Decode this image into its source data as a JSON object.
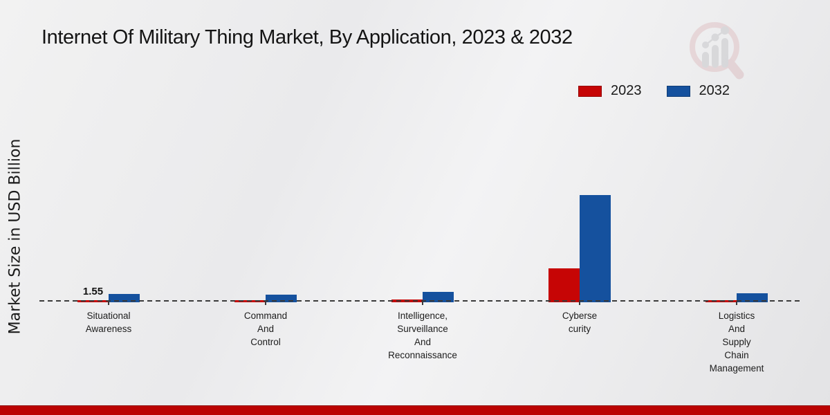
{
  "page": {
    "title": "Internet Of Military Thing Market, By Application, 2023 & 2032"
  },
  "watermark_icon": "bar-chart-magnifier-logo",
  "colors": {
    "series_2023": "#c60505",
    "series_2032": "#15519e",
    "bottom_strip": "#bb0302",
    "zero_line": "#3a3a3a"
  },
  "chart_data": {
    "type": "bar",
    "title": "Internet Of Military Thing Market, By Application, 2023 & 2032",
    "xlabel": "",
    "ylabel": "Market Size in USD Billion",
    "categories": [
      "Situational Awareness",
      "Command And Control",
      "Intelligence, Surveillance And Reconnaissance",
      "Cybersecurity",
      "Logistics And Supply Chain Management"
    ],
    "category_label_lines": [
      [
        "Situational",
        "Awareness"
      ],
      [
        "Command",
        "And",
        "Control"
      ],
      [
        "Intelligence,",
        "Surveillance",
        "And",
        "Reconnaissance"
      ],
      [
        "Cyberse",
        "curity"
      ],
      [
        "Logistics",
        "And",
        "Supply",
        "Chain",
        "Management"
      ]
    ],
    "series": [
      {
        "name": "2023",
        "color": "#c60505",
        "values": [
          1.55,
          1.2,
          1.9,
          30,
          1.3
        ],
        "value_labels": [
          "1.55",
          null,
          null,
          null,
          null
        ]
      },
      {
        "name": "2032",
        "color": "#15519e",
        "values": [
          6.9,
          6.5,
          8.4,
          95.5,
          7.3
        ],
        "value_labels": [
          null,
          null,
          null,
          null,
          null
        ]
      }
    ],
    "ylim": [
      0,
      180
    ],
    "baseline": 0,
    "gridlines": false,
    "legend_position": "top-right",
    "zero_line_style": "dashed"
  }
}
